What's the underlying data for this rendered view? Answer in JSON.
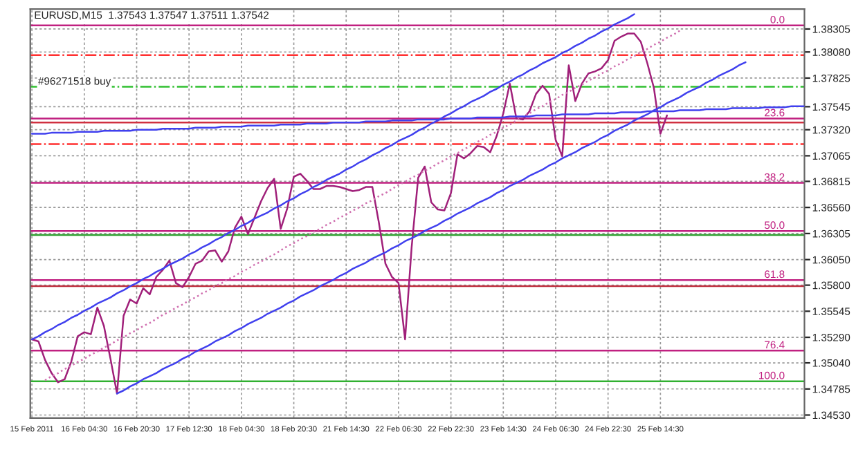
{
  "chart_data": {
    "type": "line",
    "title": "EURUSD,M15  1.37543 1.37547 1.37511 1.37542",
    "annotations": [
      "#96271518 buy",
      {
        "text": "0.0",
        "y": 1.3834
      },
      {
        "text": "23.6",
        "y": 1.3743
      },
      {
        "text": "38.2",
        "y": 1.368
      },
      {
        "text": "50.0",
        "y": 1.3633
      },
      {
        "text": "61.8",
        "y": 1.3585
      },
      {
        "text": "76.4",
        "y": 1.3516
      },
      {
        "text": "100.0",
        "y": 1.3486
      }
    ],
    "categories": [
      "15 Feb 2011",
      null,
      null,
      null,
      null,
      null,
      null,
      null,
      "16 Feb 04:30",
      null,
      null,
      null,
      null,
      null,
      null,
      null,
      "16 Feb 20:30",
      null,
      null,
      null,
      null,
      null,
      null,
      null,
      "17 Feb 12:30",
      null,
      null,
      null,
      null,
      null,
      null,
      null,
      "18 Feb 04:30",
      null,
      null,
      null,
      null,
      null,
      null,
      null,
      "18 Feb 20:30",
      null,
      null,
      null,
      null,
      null,
      null,
      null,
      "21 Feb 14:30",
      null,
      null,
      null,
      null,
      null,
      null,
      null,
      "22 Feb 06:30",
      null,
      null,
      null,
      null,
      null,
      null,
      null,
      "22 Feb 22:30",
      null,
      null,
      null,
      null,
      null,
      null,
      null,
      "23 Feb 14:30",
      null,
      null,
      null,
      null,
      null,
      null,
      null,
      "24 Feb 06:30",
      null,
      null,
      null,
      null,
      null,
      null,
      null,
      "24 Feb 22:30",
      null,
      null,
      null,
      null,
      null,
      null,
      null,
      "25 Feb 14:30",
      null,
      null,
      null,
      null,
      null,
      null,
      null,
      null,
      null,
      null,
      null,
      null,
      null,
      null,
      null,
      null,
      null,
      null,
      null,
      null,
      null,
      null
    ],
    "series": [
      {
        "color": "#a0207a",
        "values": [
          1.3527,
          1.3525,
          1.3507,
          1.3494,
          1.3485,
          1.3488,
          1.3505,
          1.353,
          1.3534,
          1.3532,
          1.3558,
          1.354,
          1.3508,
          1.3474,
          1.355,
          1.3566,
          1.3562,
          1.3577,
          1.3571,
          1.3588,
          1.3595,
          1.3604,
          1.3582,
          1.3578,
          1.3588,
          1.3601,
          1.3604,
          1.3613,
          1.3614,
          1.3603,
          1.3613,
          1.3636,
          1.3647,
          1.363,
          1.3646,
          1.3662,
          1.3675,
          1.3684,
          1.3635,
          1.3655,
          1.3686,
          1.3689,
          1.3682,
          1.3674,
          1.3674,
          1.3677,
          1.3677,
          1.3676,
          1.3674,
          1.3672,
          1.3673,
          1.3676,
          1.3676,
          1.3641,
          1.3601,
          1.3588,
          1.3582,
          1.3527,
          1.3617,
          1.3685,
          1.3696,
          1.3661,
          1.3654,
          1.3653,
          1.367,
          1.3708,
          1.3704,
          1.3709,
          1.3716,
          1.3715,
          1.371,
          1.3726,
          1.3748,
          1.3777,
          1.3743,
          1.3742,
          1.375,
          1.3767,
          1.3775,
          1.3767,
          1.3722,
          1.3706,
          1.3795,
          1.376,
          1.3777,
          1.3787,
          1.3789,
          1.3792,
          1.38,
          1.3819,
          1.3823,
          1.3826,
          1.3826,
          1.3818,
          1.3797,
          1.3773,
          1.3728,
          1.3746,
          null,
          null,
          null,
          null,
          null,
          null,
          null,
          null,
          null,
          null,
          null,
          null,
          null,
          null,
          null,
          null,
          null,
          null,
          null,
          null,
          null
        ]
      },
      {
        "type": "line",
        "color": "#4040ee",
        "values": [
          1.3527,
          1.353,
          1.3534,
          1.3537,
          1.3541,
          1.3544,
          1.3548,
          1.3551,
          1.3555,
          1.3558,
          1.3562,
          1.3565,
          1.3568,
          1.3572,
          1.3575,
          1.3579,
          1.3582,
          1.3586,
          1.3589,
          1.3593,
          1.3596,
          1.36,
          1.3603,
          1.3606,
          1.361,
          1.3613,
          1.3617,
          1.362,
          1.3624,
          1.3627,
          1.3631,
          1.3634,
          1.3638,
          1.3641,
          1.3645,
          1.3648,
          1.3651,
          1.3655,
          1.3658,
          1.3662,
          1.3665,
          1.3669,
          1.3672,
          1.3676,
          1.3679,
          1.3683,
          1.3686,
          1.3689,
          1.3693,
          1.3696,
          1.37,
          1.3703,
          1.3707,
          1.371,
          1.3714,
          1.3717,
          1.3721,
          1.3724,
          1.3727,
          1.3731,
          1.3734,
          1.3738,
          1.3741,
          1.3745,
          1.3748,
          1.3752,
          1.3755,
          1.3759,
          1.3762,
          1.3765,
          1.3769,
          1.3772,
          1.3776,
          1.3779,
          1.3783,
          1.3786,
          1.379,
          1.3793,
          1.3797,
          1.38,
          1.3803,
          1.3807,
          1.381,
          1.3814,
          1.3817,
          1.3821,
          1.3824,
          1.3828,
          1.3831,
          1.3835,
          1.3838,
          1.3841,
          1.3845,
          null,
          null,
          null,
          null,
          null,
          null,
          null,
          null,
          null,
          null,
          null,
          null,
          null,
          null,
          null,
          null,
          null,
          null,
          null,
          null,
          null,
          null,
          null,
          null,
          null,
          null
        ]
      },
      {
        "type": "line",
        "color": "#4040ee",
        "values": [
          null,
          null,
          null,
          null,
          null,
          null,
          null,
          null,
          null,
          null,
          null,
          null,
          null,
          1.3474,
          1.3477,
          1.3481,
          1.3484,
          1.3488,
          1.3491,
          1.3494,
          1.3498,
          1.3501,
          1.3504,
          1.3508,
          1.3511,
          1.3515,
          1.3518,
          1.3521,
          1.3525,
          1.3528,
          1.3531,
          1.3535,
          1.3538,
          1.3542,
          1.3545,
          1.3548,
          1.3552,
          1.3555,
          1.3558,
          1.3562,
          1.3565,
          1.3569,
          1.3572,
          1.3575,
          1.3579,
          1.3582,
          1.3585,
          1.3589,
          1.3592,
          1.3596,
          1.3599,
          1.3602,
          1.3606,
          1.3609,
          1.3612,
          1.3616,
          1.3619,
          1.3623,
          1.3626,
          1.3629,
          1.3633,
          1.3636,
          1.3639,
          1.3643,
          1.3646,
          1.365,
          1.3653,
          1.3656,
          1.366,
          1.3663,
          1.3666,
          1.367,
          1.3673,
          1.3677,
          1.368,
          1.3683,
          1.3687,
          1.369,
          1.3693,
          1.3697,
          1.37,
          1.3704,
          1.3707,
          1.371,
          1.3714,
          1.3717,
          1.372,
          1.3724,
          1.3727,
          1.3731,
          1.3734,
          1.3737,
          1.3741,
          1.3744,
          1.3747,
          1.3751,
          1.3754,
          1.3758,
          1.3761,
          1.3764,
          1.3768,
          1.3771,
          1.3774,
          1.3778,
          1.3781,
          1.3785,
          1.3788,
          1.3791,
          1.3795,
          1.3798,
          null,
          null,
          null,
          null,
          null,
          null,
          null,
          null,
          null
        ]
      },
      {
        "type": "line",
        "color": "#d070b0",
        "line_style": "dotted",
        "values": [
          null,
          null,
          1.3487,
          1.3491,
          1.3494,
          1.3498,
          1.3501,
          1.3505,
          1.3508,
          1.3512,
          1.3515,
          1.3519,
          1.3522,
          1.3526,
          1.3529,
          1.3533,
          1.3536,
          1.354,
          1.3543,
          1.3547,
          1.3551,
          1.3554,
          1.3558,
          1.3561,
          1.3565,
          1.3568,
          1.3572,
          1.3575,
          1.3579,
          1.3582,
          1.3586,
          1.3589,
          1.3593,
          1.3596,
          1.36,
          1.3603,
          1.3607,
          1.361,
          1.3614,
          1.3618,
          1.3621,
          1.3625,
          1.3628,
          1.3632,
          1.3635,
          1.3639,
          1.3642,
          1.3646,
          1.3649,
          1.3653,
          1.3656,
          1.366,
          1.3663,
          1.3667,
          1.367,
          1.3674,
          1.3678,
          1.3681,
          1.3685,
          1.3688,
          1.3692,
          1.3695,
          1.3699,
          1.3702,
          1.3706,
          1.3709,
          1.3713,
          1.3716,
          1.372,
          1.3723,
          1.3727,
          1.373,
          1.3734,
          1.3737,
          1.3741,
          1.3745,
          1.3748,
          1.3752,
          1.3755,
          1.3759,
          1.3762,
          1.3766,
          1.3769,
          1.3773,
          1.3776,
          1.378,
          1.3783,
          1.3787,
          1.379,
          1.3794,
          1.3797,
          1.3801,
          1.3804,
          1.3808,
          1.3811,
          1.3815,
          1.3818,
          1.3822,
          1.3825,
          1.3829,
          null,
          null,
          null,
          null,
          null,
          null,
          null,
          null,
          null,
          null,
          null,
          null,
          null,
          null,
          null,
          null,
          null,
          null,
          null
        ]
      },
      {
        "type": "line",
        "color": "#4040ee",
        "values": [
          1.3728,
          1.3728,
          1.3728,
          1.3729,
          1.3729,
          1.3729,
          1.3729,
          1.373,
          1.373,
          1.373,
          1.373,
          1.3731,
          1.3731,
          1.3731,
          1.3731,
          1.3731,
          1.3732,
          1.3732,
          1.3732,
          1.3732,
          1.3733,
          1.3733,
          1.3733,
          1.3733,
          1.3733,
          1.3734,
          1.3734,
          1.3734,
          1.3734,
          1.3735,
          1.3735,
          1.3735,
          1.3735,
          1.3736,
          1.3736,
          1.3736,
          1.3736,
          1.3736,
          1.3737,
          1.3737,
          1.3737,
          1.3737,
          1.3738,
          1.3738,
          1.3738,
          1.3738,
          1.3739,
          1.3739,
          1.3739,
          1.3739,
          1.3739,
          1.374,
          1.374,
          1.374,
          1.374,
          1.3741,
          1.3741,
          1.3741,
          1.3741,
          1.3742,
          1.3742,
          1.3742,
          1.3742,
          1.3742,
          1.3743,
          1.3743,
          1.3743,
          1.3743,
          1.3744,
          1.3744,
          1.3744,
          1.3744,
          1.3744,
          1.3745,
          1.3745,
          1.3745,
          1.3745,
          1.3746,
          1.3746,
          1.3746,
          1.3746,
          1.3747,
          1.3747,
          1.3747,
          1.3747,
          1.3747,
          1.3748,
          1.3748,
          1.3748,
          1.3748,
          1.3749,
          1.3749,
          1.3749,
          1.3749,
          1.375,
          1.375,
          1.375,
          1.375,
          1.375,
          1.3751,
          1.3751,
          1.3751,
          1.3751,
          1.3752,
          1.3752,
          1.3752,
          1.3752,
          1.3753,
          1.3753,
          1.3753,
          1.3753,
          1.3753,
          1.3754,
          1.3754,
          1.3754,
          1.3754,
          1.3755,
          1.3755,
          1.3755
        ]
      }
    ],
    "ref_lines": [
      {
        "axis": "y",
        "value": 1.3834,
        "color": "#c02080",
        "line_style": "solid"
      },
      {
        "axis": "y",
        "value": 1.3805,
        "color": "#ff3030",
        "line_style": "dashdot"
      },
      {
        "axis": "y",
        "value": 1.3774,
        "color": "#30c030",
        "line_style": "dashdot"
      },
      {
        "axis": "y",
        "value": 1.3743,
        "color": "#c02080",
        "line_style": "solid"
      },
      {
        "axis": "y",
        "value": 1.3739,
        "color": "#d03040",
        "line_style": "solid"
      },
      {
        "axis": "y",
        "value": 1.3718,
        "color": "#ff3030",
        "line_style": "dashdot"
      },
      {
        "axis": "y",
        "value": 1.368,
        "color": "#c02080",
        "line_style": "solid"
      },
      {
        "axis": "y",
        "value": 1.3633,
        "color": "#c02080",
        "line_style": "solid"
      },
      {
        "axis": "y",
        "value": 1.3629,
        "color": "#30a030",
        "line_style": "solid"
      },
      {
        "axis": "y",
        "value": 1.3585,
        "color": "#c02080",
        "line_style": "solid"
      },
      {
        "axis": "y",
        "value": 1.3579,
        "color": "#c03040",
        "line_style": "solid"
      },
      {
        "axis": "y",
        "value": 1.3516,
        "color": "#c02080",
        "line_style": "solid"
      },
      {
        "axis": "y",
        "value": 1.3486,
        "color": "#30b030",
        "line_style": "solid"
      }
    ],
    "ylim": [
      1.345,
      1.385
    ],
    "yticks": [
      {
        "value": 1.3453,
        "label": "1.34530"
      },
      {
        "value": 1.34785,
        "label": "1.34785"
      },
      {
        "value": 1.3504,
        "label": "1.35040"
      },
      {
        "value": 1.3529,
        "label": "1.35290"
      },
      {
        "value": 1.35545,
        "label": "1.35545"
      },
      {
        "value": 1.358,
        "label": "1.35800"
      },
      {
        "value": 1.3605,
        "label": "1.36050"
      },
      {
        "value": 1.36305,
        "label": "1.36305"
      },
      {
        "value": 1.3656,
        "label": "1.36560"
      },
      {
        "value": 1.36815,
        "label": "1.36815"
      },
      {
        "value": 1.37065,
        "label": "1.37065"
      },
      {
        "value": 1.3732,
        "label": "1.37320"
      },
      {
        "value": 1.37545,
        "label": "1.37545"
      },
      {
        "value": 1.37825,
        "label": "1.37825"
      },
      {
        "value": 1.3808,
        "label": "1.38080"
      },
      {
        "value": 1.38305,
        "label": "1.38305"
      }
    ],
    "grid": true,
    "legend": false,
    "marker": "none",
    "line_style": "solid"
  }
}
